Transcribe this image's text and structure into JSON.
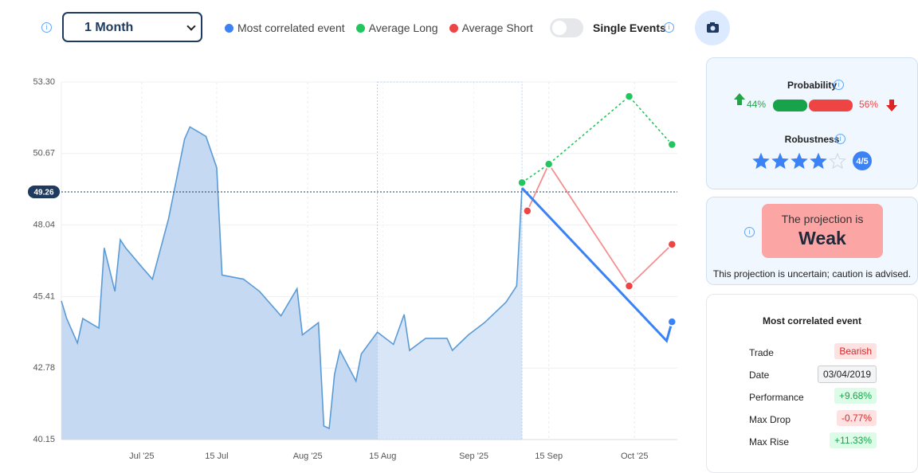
{
  "controls": {
    "period": "1 Month",
    "toggle_label": "Single Events"
  },
  "chart_data": {
    "type": "area",
    "x": [
      "2025-06-16",
      "2025-06-17",
      "2025-06-19",
      "2025-06-20",
      "2025-06-23",
      "2025-06-24",
      "2025-06-26",
      "2025-06-27",
      "2025-06-28",
      "2025-07-01",
      "2025-07-03",
      "2025-07-06",
      "2025-07-09",
      "2025-07-10",
      "2025-07-13",
      "2025-07-15",
      "2025-07-16",
      "2025-07-20",
      "2025-07-23",
      "2025-07-27",
      "2025-07-30",
      "2025-07-31",
      "2025-08-03",
      "2025-08-04",
      "2025-08-05",
      "2025-08-06",
      "2025-08-07",
      "2025-08-10",
      "2025-08-11",
      "2025-08-14",
      "2025-08-17",
      "2025-08-19",
      "2025-08-20",
      "2025-08-23",
      "2025-08-27",
      "2025-08-28",
      "2025-08-31",
      "2025-09-03",
      "2025-09-07",
      "2025-09-09",
      "2025-09-10"
    ],
    "values": [
      45.25,
      44.6,
      43.7,
      44.6,
      44.25,
      47.2,
      45.6,
      47.5,
      47.2,
      46.5,
      46.05,
      48.26,
      51.2,
      51.65,
      51.3,
      50.15,
      46.2,
      46.05,
      45.6,
      44.7,
      45.7,
      44.0,
      44.45,
      40.65,
      40.56,
      42.55,
      43.43,
      42.3,
      43.3,
      44.1,
      43.65,
      44.75,
      43.43,
      43.87,
      43.87,
      43.43,
      44.0,
      44.45,
      45.2,
      45.8,
      49.4
    ],
    "color": "#5b9bd5",
    "fill": "#c5d9f3",
    "ylim": [
      40.15,
      53.3
    ],
    "yticks": [
      40.15,
      42.78,
      45.41,
      48.04,
      50.67,
      {
        "value": 53.3,
        "label": "53.30"
      }
    ],
    "xlim": [
      "2025-06-16",
      "2025-10-09"
    ],
    "xticks": [
      {
        "value": "2025-07-01",
        "label": "Jul '25"
      },
      {
        "value": "2025-07-15",
        "label": "15 Jul"
      },
      {
        "value": "2025-08-01",
        "label": "Aug '25"
      },
      {
        "value": "2025-08-15",
        "label": "15 Aug"
      },
      {
        "value": "2025-09-01",
        "label": "Sep '25"
      },
      {
        "value": "2025-09-15",
        "label": "15 Sep"
      },
      {
        "value": "2025-10-01",
        "label": "Oct '25"
      }
    ],
    "grid": true,
    "current_value": 49.26,
    "highlight": [
      "2025-08-14",
      "2025-09-10"
    ],
    "series": [
      {
        "name": "Average Short",
        "color": "#ef4444",
        "style": "solid",
        "markers": "all",
        "x": [
          "2025-09-11",
          "2025-09-15",
          "2025-09-30",
          "2025-10-08"
        ],
        "values": [
          48.56,
          50.28,
          45.8,
          47.33
        ]
      },
      {
        "name": "Average Long",
        "color": "#22c55e",
        "style": "dashed",
        "markers": "all",
        "x": [
          "2025-09-10",
          "2025-09-15",
          "2025-09-30",
          "2025-10-08"
        ],
        "values": [
          49.6,
          50.28,
          52.77,
          51.0
        ]
      },
      {
        "name": "Most correlated event",
        "color": "#3b82f6",
        "style": "solid",
        "markers": "last",
        "x": [
          "2025-09-10",
          "2025-10-07",
          "2025-10-08"
        ],
        "values": [
          49.4,
          43.78,
          44.48
        ]
      }
    ],
    "legend_order": [
      2,
      1,
      0
    ]
  },
  "probability": {
    "label": "Probability",
    "up": {
      "value": 44,
      "label": "44%"
    },
    "down": {
      "value": 56,
      "label": "56%"
    }
  },
  "robustness": {
    "label": "Robustness",
    "score": 4,
    "max": 5,
    "score_label": "4/5"
  },
  "projection": {
    "prefix": "The projection is",
    "verdict": "Weak",
    "note": "This projection is uncertain; caution is advised."
  },
  "event": {
    "title": "Most correlated event",
    "rows": [
      [
        "Trade",
        "Bearish"
      ],
      [
        "Date",
        "03/04/2019"
      ],
      [
        "Performance",
        "+9.68%"
      ],
      [
        "Max Drop",
        "-0.77%"
      ],
      [
        "Max Rise",
        "+11.33%"
      ]
    ]
  }
}
